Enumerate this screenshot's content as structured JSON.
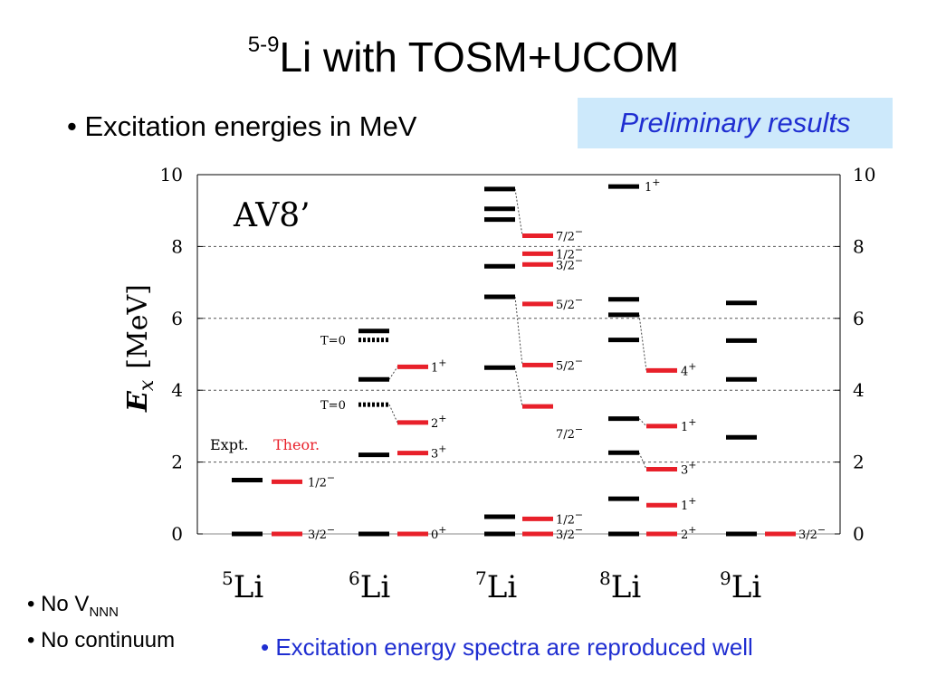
{
  "title": {
    "sup": "5-9",
    "main": "Li  with TOSM+UCOM"
  },
  "bullet_main": "• Excitation energies in MeV",
  "badge": "Preliminary results",
  "notes": {
    "no_vnnn_prefix": "• No V",
    "no_vnnn_sub": "NNN",
    "no_continuum": "• No continuum",
    "reproduced": "• Excitation energy spectra are reproduced well"
  },
  "colors": {
    "expt": "#000000",
    "theor": "#e8202a",
    "grid": "#555555",
    "badge_bg": "#cde9fb",
    "blue_text": "#1f2ed1"
  },
  "chart_data": {
    "type": "level-diagram",
    "interaction": "AV8’",
    "ylabel_symbol": "E",
    "ylabel_sub": "x",
    "ylabel_unit": "[MeV]",
    "ylim": [
      0,
      10
    ],
    "yticks": [
      0,
      2,
      4,
      6,
      8,
      10
    ],
    "grid": "dashed at 2, 4, 6, 8",
    "legend": {
      "expt": "Expt.",
      "theor": "Theor."
    },
    "isotopes": [
      {
        "mass": "5",
        "name": "Li",
        "expt": [
          {
            "e": 0
          },
          {
            "e": 1.5
          }
        ],
        "theor": [
          {
            "e": 0,
            "label": "3/2",
            "sign": "−"
          },
          {
            "e": 1.45,
            "label": "1/2",
            "sign": "−"
          }
        ],
        "links": []
      },
      {
        "mass": "6",
        "name": "Li",
        "expt": [
          {
            "e": 0
          },
          {
            "e": 2.2
          },
          {
            "e": 3.6,
            "style": "dotted",
            "tag": "T=0"
          },
          {
            "e": 4.3
          },
          {
            "e": 5.4,
            "style": "dotted",
            "tag": "T=0"
          },
          {
            "e": 5.65
          }
        ],
        "theor": [
          {
            "e": 0,
            "label": "0",
            "sign": "+"
          },
          {
            "e": 2.25,
            "label": "3",
            "sign": "+"
          },
          {
            "e": 3.1,
            "label": "2",
            "sign": "+"
          },
          {
            "e": 4.65,
            "label": "1",
            "sign": "+"
          }
        ],
        "links": [
          [
            3.6,
            3.1
          ],
          [
            4.3,
            4.65
          ]
        ]
      },
      {
        "mass": "7",
        "name": "Li",
        "expt": [
          {
            "e": 0
          },
          {
            "e": 0.48
          },
          {
            "e": 4.63
          },
          {
            "e": 6.6
          },
          {
            "e": 7.45
          },
          {
            "e": 8.75
          },
          {
            "e": 9.05
          },
          {
            "e": 9.6
          }
        ],
        "theor": [
          {
            "e": 0,
            "label": "3/2",
            "sign": "−"
          },
          {
            "e": 0.42,
            "label": "1/2",
            "sign": "−"
          },
          {
            "e": 3.55,
            "label": "7/2",
            "sign": "−",
            "label_e": 2.8
          },
          {
            "e": 4.7,
            "label": "5/2",
            "sign": "−"
          },
          {
            "e": 6.4,
            "label": "5/2",
            "sign": "−"
          },
          {
            "e": 7.5,
            "label": "3/2",
            "sign": "−"
          },
          {
            "e": 7.8,
            "label": "1/2",
            "sign": "−"
          },
          {
            "e": 8.3,
            "label": "7/2",
            "sign": "−"
          }
        ],
        "links": [
          [
            4.63,
            3.55
          ],
          [
            6.6,
            4.7
          ],
          [
            9.6,
            8.3
          ]
        ]
      },
      {
        "mass": "8",
        "name": "Li",
        "expt": [
          {
            "e": 0
          },
          {
            "e": 0.98
          },
          {
            "e": 2.26
          },
          {
            "e": 3.21
          },
          {
            "e": 5.4
          },
          {
            "e": 6.1
          },
          {
            "e": 6.53
          },
          {
            "e": 9.67
          }
        ],
        "theor": [
          {
            "e": 0,
            "label": "2",
            "sign": "+"
          },
          {
            "e": 0.8,
            "label": "1",
            "sign": "+"
          },
          {
            "e": 1.8,
            "label": "3",
            "sign": "+"
          },
          {
            "e": 3.0,
            "label": "1",
            "sign": "+"
          },
          {
            "e": 4.55,
            "label": "4",
            "sign": "+"
          }
        ],
        "links": [
          [
            2.26,
            1.8
          ],
          [
            3.21,
            3.0
          ],
          [
            6.1,
            4.55
          ]
        ],
        "expt_labels": [
          {
            "e": 9.67,
            "label": "1",
            "sign": "+"
          }
        ]
      },
      {
        "mass": "9",
        "name": "Li",
        "expt": [
          {
            "e": 0
          },
          {
            "e": 2.69
          },
          {
            "e": 4.3
          },
          {
            "e": 5.38
          },
          {
            "e": 6.43
          }
        ],
        "theor": [
          {
            "e": 0,
            "label": "3/2",
            "sign": "−"
          }
        ],
        "links": []
      }
    ]
  }
}
